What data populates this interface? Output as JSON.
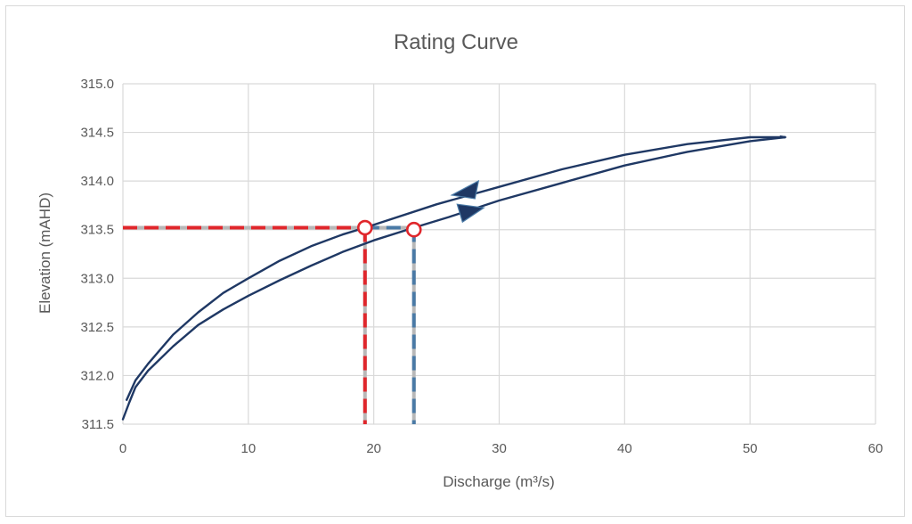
{
  "chart_data": {
    "type": "line",
    "title": "Rating Curve",
    "xlabel": "Discharge (m³/s)",
    "ylabel": "Elevation (mAHD)",
    "xlim": [
      0,
      60
    ],
    "ylim": [
      311.5,
      315.0
    ],
    "x_ticks": [
      "0",
      "10",
      "20",
      "30",
      "40",
      "50",
      "60"
    ],
    "y_ticks": [
      "311.5",
      "312.0",
      "312.5",
      "313.0",
      "313.5",
      "314.0",
      "314.5",
      "315.0"
    ],
    "grid": true,
    "legend": "none",
    "colors": {
      "curve": "#1f3864",
      "grid": "#d9d9d9",
      "red_dash": "#e0262b",
      "blue_dash": "#4a7aa6",
      "marker_edge": "#e0262b"
    },
    "series": [
      {
        "direction": "rising",
        "x": [
          0,
          0.5,
          1,
          2,
          4,
          6,
          8,
          10,
          12.5,
          15,
          17.5,
          20,
          23.2,
          26,
          30,
          35,
          40,
          45,
          50,
          52.8
        ],
        "y": [
          311.55,
          311.72,
          311.88,
          312.05,
          312.3,
          312.52,
          312.68,
          312.82,
          312.98,
          313.13,
          313.27,
          313.39,
          313.52,
          313.63,
          313.8,
          313.98,
          314.16,
          314.3,
          314.41,
          314.45
        ]
      },
      {
        "direction": "falling",
        "x": [
          52.8,
          50,
          45,
          40,
          35,
          30,
          25,
          19.3,
          17.5,
          15,
          12.5,
          10,
          8,
          6,
          4,
          2,
          1,
          0.3
        ],
        "y": [
          314.45,
          314.45,
          314.38,
          314.27,
          314.12,
          313.94,
          313.76,
          313.52,
          313.45,
          313.33,
          313.18,
          313.0,
          312.85,
          312.65,
          312.42,
          312.12,
          311.95,
          311.75
        ]
      }
    ],
    "reference_points": [
      {
        "x": 19.3,
        "y": 313.52
      },
      {
        "x": 23.2,
        "y": 313.5
      }
    ],
    "arrows": [
      {
        "x": 27.5,
        "y": 313.91,
        "direction": "left"
      },
      {
        "x": 27.5,
        "y": 313.67,
        "direction": "right"
      }
    ]
  }
}
